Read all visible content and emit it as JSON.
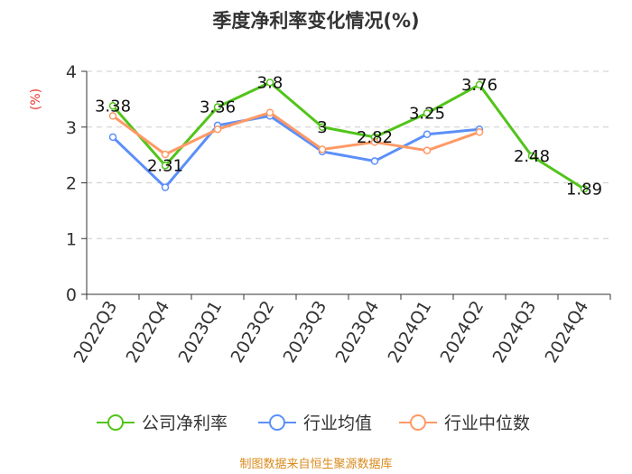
{
  "chart_data": {
    "type": "line",
    "title": "季度净利率变化情况(%)",
    "ylabel": "(%)",
    "categories": [
      "2022Q3",
      "2022Q4",
      "2023Q1",
      "2023Q2",
      "2023Q3",
      "2023Q4",
      "2024Q1",
      "2024Q2",
      "2024Q3",
      "2024Q4"
    ],
    "ylim": [
      0,
      4
    ],
    "yticks": [
      "0",
      "1",
      "2",
      "3",
      "4"
    ],
    "grid": true,
    "legend_position": "bottom",
    "series": [
      {
        "name": "公司净利率",
        "color": "#52c41a",
        "values": [
          3.38,
          2.31,
          3.36,
          3.8,
          3,
          2.82,
          3.25,
          3.76,
          2.48,
          1.89
        ],
        "labels": [
          "3.38",
          "2.31",
          "3.36",
          "3.8",
          "3",
          "2.82",
          "3.25",
          "3.76",
          "2.48",
          "1.89"
        ]
      },
      {
        "name": "行业均值",
        "color": "#5b8ff9",
        "values": [
          2.82,
          1.92,
          3.03,
          3.2,
          2.56,
          2.39,
          2.87,
          2.96,
          null,
          null
        ]
      },
      {
        "name": "行业中位数",
        "color": "#ff9966",
        "values": [
          3.2,
          2.51,
          2.96,
          3.26,
          2.6,
          2.73,
          2.58,
          2.91,
          null,
          null
        ]
      }
    ]
  },
  "source": "制图数据来自恒生聚源数据库"
}
